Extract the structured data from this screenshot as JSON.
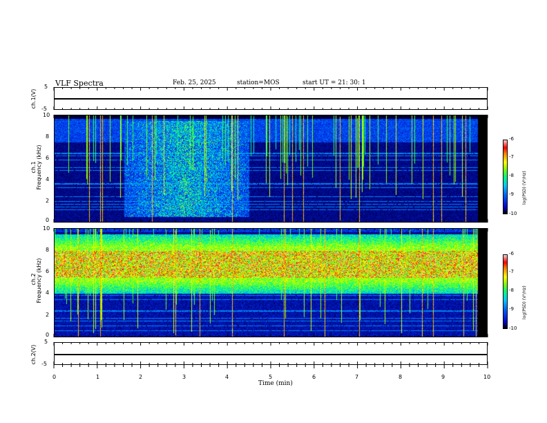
{
  "header": {
    "title": "VLF Spectra",
    "date": "Feb. 25, 2025",
    "station": "station=MOS",
    "start": "start  UT  =   21: 30: 1"
  },
  "panels": {
    "ch1_wave": {
      "ylabel": "ch.1(V)",
      "ticks": [
        "5",
        "-5"
      ]
    },
    "ch1_spec": {
      "ylabel_top": "ch.1",
      "ylabel_bottom": "Frequency (kHz)",
      "ticks": [
        "10",
        "8",
        "6",
        "4",
        "2",
        "0"
      ]
    },
    "ch2_spec": {
      "ylabel_top": "ch.2",
      "ylabel_bottom": "Frequency (kHz)",
      "ticks": [
        "10",
        "8",
        "6",
        "4",
        "2",
        "0"
      ]
    },
    "ch2_wave": {
      "ylabel": "ch.2(V)",
      "ticks": [
        "5",
        "-5"
      ]
    }
  },
  "colorbar": {
    "labels": [
      "-6",
      "-7",
      "-8",
      "-9",
      "-10"
    ],
    "title": "log(PSD) (V²/Hz)"
  },
  "xaxis": {
    "label": "Time  (min)",
    "ticks": [
      "0",
      "1",
      "2",
      "3",
      "4",
      "5",
      "6",
      "7",
      "8",
      "9",
      "10"
    ]
  },
  "chart_data": {
    "type": "heatmap",
    "title": "VLF Spectra",
    "xlabel": "Time (min)",
    "xlim": [
      0,
      10
    ],
    "data_extent_min": 9.8,
    "panels": [
      {
        "name": "ch.1",
        "ylabel": "Frequency (kHz)",
        "ylim": [
          0,
          10
        ],
        "diffuse_band_minutes": [
          1.6,
          4.5
        ],
        "diffuse_band_khz": [
          0.5,
          9.5
        ],
        "strong_sferic_minutes": [
          0.8,
          1.05,
          1.1,
          2.25,
          4.1,
          5.3,
          5.5,
          5.75,
          6.6,
          7.05,
          8.75,
          8.95,
          9.5
        ]
      },
      {
        "name": "ch.2",
        "ylabel": "Frequency (kHz)",
        "ylim": [
          0,
          10
        ],
        "emission_band_khz": [
          4,
          9.5
        ],
        "peak_band_khz": [
          5.5,
          8
        ],
        "strong_sferic_minutes": [
          0.55,
          1.05,
          2.8,
          3.35,
          4.1,
          5.3,
          6.25,
          7.05,
          8.5,
          8.75,
          9.45,
          9.75
        ]
      }
    ],
    "colorbar": {
      "label": "log(PSD) (V²/Hz)",
      "range": [
        -10,
        -6
      ]
    },
    "waveforms": [
      {
        "name": "ch.1(V)",
        "ylim": [
          -5,
          5
        ],
        "level_volts": 0
      },
      {
        "name": "ch.2(V)",
        "ylim": [
          -5,
          5
        ],
        "level_volts": 0
      }
    ]
  }
}
